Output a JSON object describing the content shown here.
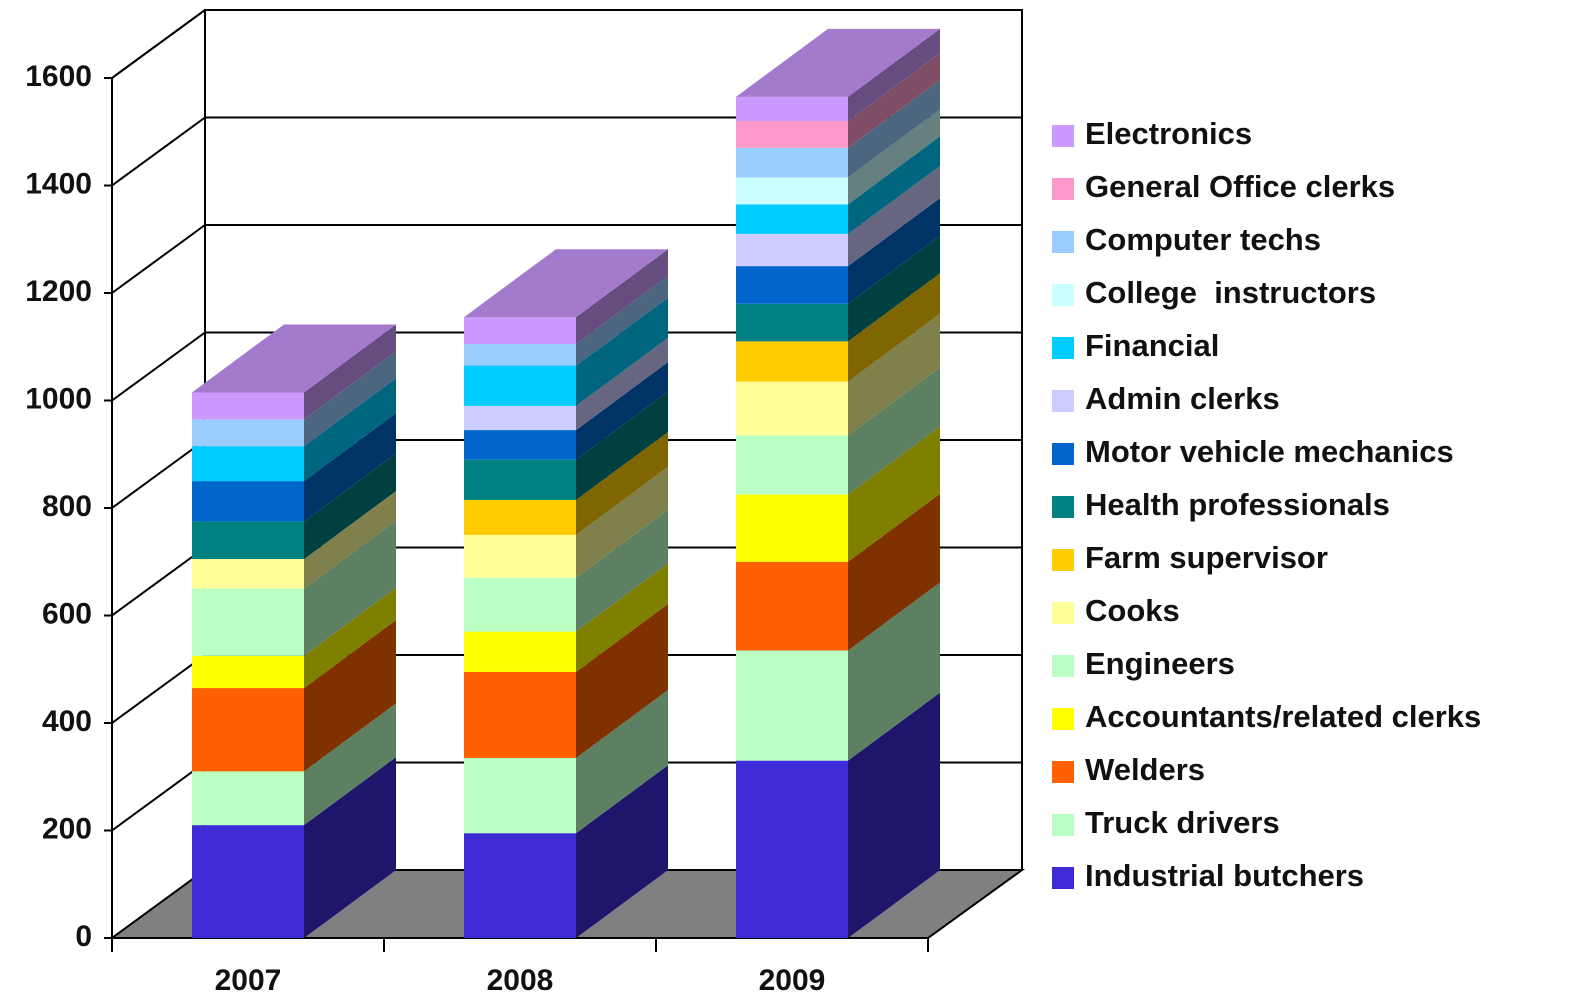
{
  "chart_data": {
    "type": "bar",
    "stacked": true,
    "three_d": true,
    "categories": [
      "2007",
      "2008",
      "2009"
    ],
    "ylim": [
      0,
      1600
    ],
    "yticks": [
      0,
      200,
      400,
      600,
      800,
      1000,
      1200,
      1400,
      1600
    ],
    "grid": true,
    "legend": "right",
    "series": [
      {
        "name": "Industrial butchers",
        "color": "#3d2bd6",
        "values": [
          210,
          195,
          330
        ]
      },
      {
        "name": "Truck drivers",
        "color": "#b9ffc4",
        "values": [
          100,
          140,
          205
        ]
      },
      {
        "name": "Welders",
        "color": "#ff6100",
        "values": [
          155,
          160,
          165
        ]
      },
      {
        "name": "Accountants/related clerks",
        "color": "#ffff00",
        "values": [
          60,
          75,
          125
        ]
      },
      {
        "name": "Engineers",
        "color": "#b9ffc4",
        "values": [
          125,
          100,
          110
        ]
      },
      {
        "name": "Cooks",
        "color": "#ffff99",
        "values": [
          55,
          80,
          100
        ]
      },
      {
        "name": "Farm supervisor",
        "color": "#ffcc00",
        "values": [
          0,
          65,
          75
        ]
      },
      {
        "name": "Health professionals",
        "color": "#008080",
        "values": [
          70,
          75,
          70
        ]
      },
      {
        "name": "Motor vehicle mechanics",
        "color": "#0066cc",
        "values": [
          75,
          55,
          70
        ]
      },
      {
        "name": "Admin clerks",
        "color": "#ccccff",
        "values": [
          0,
          45,
          60
        ]
      },
      {
        "name": "Financial",
        "color": "#00ccff",
        "values": [
          65,
          75,
          55
        ]
      },
      {
        "name": "College  instructors",
        "color": "#ccffff",
        "values": [
          0,
          0,
          50
        ]
      },
      {
        "name": "Computer techs",
        "color": "#99ccff",
        "values": [
          50,
          40,
          55
        ]
      },
      {
        "name": "General Office clerks",
        "color": "#ff99cc",
        "values": [
          0,
          0,
          50
        ]
      },
      {
        "name": "Electronics",
        "color": "#cc99ff",
        "values": [
          50,
          50,
          45
        ]
      }
    ]
  }
}
